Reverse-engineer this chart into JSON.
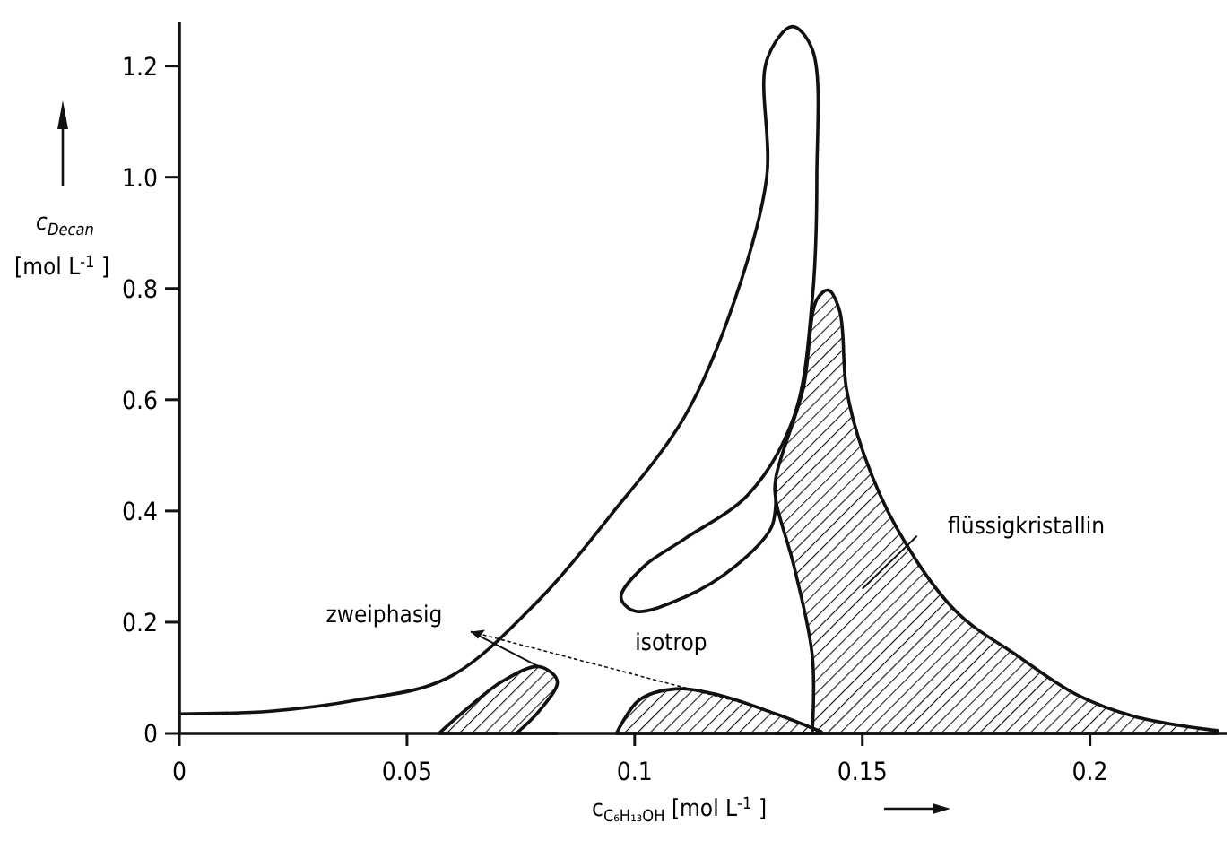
{
  "chart_data": {
    "type": "line",
    "xlabel": "c$_{C₆H₁₃OH}$ [mol L$^{-1}$]",
    "ylabel": "c$_{Decan}$ [mol L$^{-1}$]",
    "xlim": [
      0,
      0.23
    ],
    "ylim": [
      0,
      1.28
    ],
    "xticks": [
      0,
      0.05,
      0.1,
      0.15,
      0.2
    ],
    "yticks": [
      0,
      0.2,
      0.4,
      0.6,
      0.8,
      {
        "value": 1,
        "label": "1.0"
      },
      1.2
    ],
    "series": [
      {
        "color": "#111111",
        "x": [
          0,
          0.02,
          0.039,
          0.059,
          0.079,
          0.0945,
          0.111,
          0.122,
          0.129,
          0.129,
          0.1346,
          0.139,
          0.14,
          0.139,
          0.135,
          0.125,
          0.111,
          0.102,
          0.097,
          0.1,
          0.111,
          0.122,
          0.13,
          0.131
        ],
        "values": [
          0.035,
          0.04,
          0.06,
          0.1,
          0.24,
          0.39,
          0.57,
          0.78,
          1.0,
          1.21,
          1.271,
          1.23,
          1.0,
          0.78,
          0.57,
          0.43,
          0.35,
          0.3,
          0.245,
          0.22,
          0.245,
          0.3,
          0.37,
          0.42
        ]
      },
      {
        "type": "area",
        "color": "#111111",
        "x": [
          0.139,
          0.139,
          0.135,
          0.131,
          0.131,
          0.137,
          0.14,
          0.1425,
          0.145,
          0.1465,
          0.15,
          0.1575,
          0.1705,
          0.184,
          0.197,
          0.21,
          0.228
        ],
        "values": [
          0,
          0.14,
          0.3,
          0.42,
          0.46,
          0.62,
          0.78,
          0.797,
          0.76,
          0.62,
          0.51,
          0.37,
          0.22,
          0.14,
          0.07,
          0.03,
          0.005
        ]
      },
      {
        "type": "area",
        "color": "#111111",
        "x": [
          0.057,
          0.064,
          0.071,
          0.079,
          0.083,
          0.079,
          0.074
        ],
        "values": [
          0,
          0.05,
          0.094,
          0.12,
          0.094,
          0.04,
          0
        ]
      },
      {
        "type": "area",
        "color": "#111111",
        "x": [
          0.096,
          0.101,
          0.109,
          0.118,
          0.131,
          0.141
        ],
        "values": [
          0,
          0.06,
          0.08,
          0.07,
          0.035,
          0.003
        ]
      }
    ],
    "annotations": [
      {
        "text": "zweiphasig",
        "x": 0.079,
        "y": 0.12
      },
      "isotrop",
      "flüssigkristallin"
    ]
  }
}
